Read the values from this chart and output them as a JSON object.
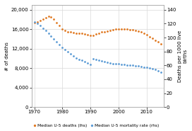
{
  "years": [
    1970,
    1971,
    1972,
    1973,
    1974,
    1975,
    1976,
    1977,
    1978,
    1979,
    1980,
    1981,
    1982,
    1983,
    1984,
    1985,
    1986,
    1987,
    1988,
    1989,
    1990,
    1991,
    1992,
    1993,
    1994,
    1995,
    1996,
    1997,
    1998,
    1999,
    2000,
    2001,
    2002,
    2003,
    2004,
    2005,
    2006,
    2007,
    2008,
    2009,
    2010,
    2011,
    2012,
    2013,
    2014,
    2015
  ],
  "deaths": [
    17400,
    17500,
    17800,
    18100,
    18400,
    18700,
    18500,
    18100,
    17400,
    16700,
    16100,
    15700,
    15500,
    15400,
    15300,
    15200,
    15150,
    15100,
    15050,
    14950,
    14700,
    14800,
    15000,
    15200,
    15400,
    15500,
    15600,
    15700,
    15900,
    16000,
    16100,
    16100,
    16100,
    16000,
    15950,
    15850,
    15750,
    15650,
    15450,
    15200,
    14900,
    14500,
    14100,
    13700,
    13400,
    13000
  ],
  "mortality": [
    122,
    120,
    117,
    113,
    110,
    106,
    102,
    98,
    94,
    90,
    86,
    83,
    80,
    77,
    74,
    71,
    69,
    67,
    65,
    63,
    61,
    70,
    68,
    67,
    66,
    65,
    64,
    63,
    62,
    62,
    62,
    61,
    61,
    60,
    60,
    60,
    59,
    59,
    58,
    57,
    57,
    56,
    55,
    54,
    52,
    50
  ],
  "deaths_color": "#E07820",
  "mortality_color": "#5B9BD5",
  "left_yticks": [
    0,
    4000,
    8000,
    12000,
    16000,
    20000
  ],
  "right_yticks": [
    0,
    20,
    40,
    60,
    80,
    100,
    120,
    140
  ],
  "xlim": [
    1969,
    2016
  ],
  "left_ylim": [
    0,
    21000
  ],
  "right_ylim": [
    0,
    147
  ],
  "xticks": [
    1970,
    1980,
    1990,
    2000,
    2010
  ],
  "left_ylabel": "# of deaths",
  "right_ylabel": "Deaths per 1000 live\nbirths",
  "legend_deaths": "Median U-5 deaths (lhs)",
  "legend_mortality": "Median U-5 mortality rate (rhs)",
  "background_color": "#ffffff",
  "grid_color": "#d9d9d9",
  "tick_fontsize": 5,
  "label_fontsize": 5,
  "legend_fontsize": 4.2
}
